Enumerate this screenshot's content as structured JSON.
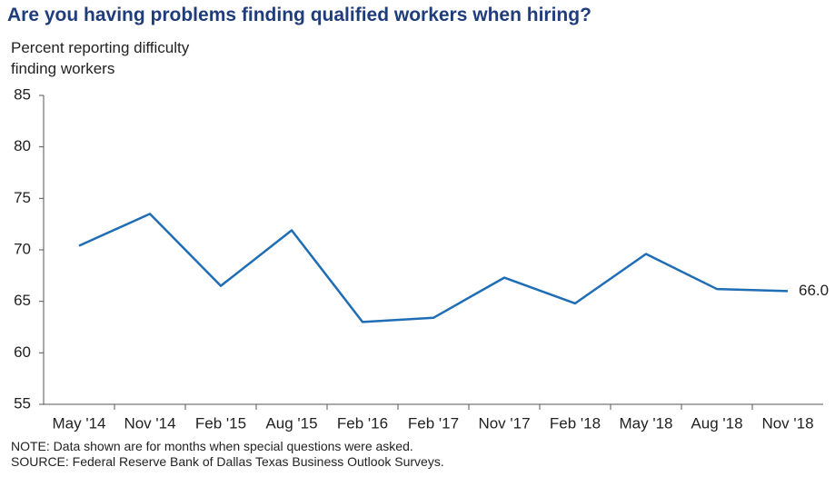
{
  "chart_data": {
    "type": "line",
    "title": "Are you having problems finding qualified workers when hiring?",
    "y_label": "Percent reporting difficulty finding workers",
    "categories": [
      "May '14",
      "Nov '14",
      "Feb '15",
      "Aug '15",
      "Feb '16",
      "Feb '17",
      "Nov '17",
      "Feb '18",
      "May '18",
      "Aug '18",
      "Nov '18"
    ],
    "series": [
      {
        "name": "Percent reporting difficulty",
        "color": "#1f6db5",
        "values": [
          70.4,
          73.5,
          66.5,
          71.9,
          63.0,
          63.4,
          67.3,
          64.8,
          69.6,
          66.2,
          66.0
        ],
        "value_labels": [
          null,
          null,
          null,
          null,
          null,
          null,
          null,
          null,
          null,
          null,
          "66.0"
        ]
      }
    ],
    "ylim": [
      55,
      85
    ],
    "yticks": [
      55,
      60,
      65,
      70,
      75,
      80,
      85
    ],
    "grid": false,
    "notes": [
      "NOTE: Data shown are for months when special questions were asked.",
      "SOURCE: Federal Reserve Bank of Dallas Texas Business Outlook Surveys."
    ]
  }
}
